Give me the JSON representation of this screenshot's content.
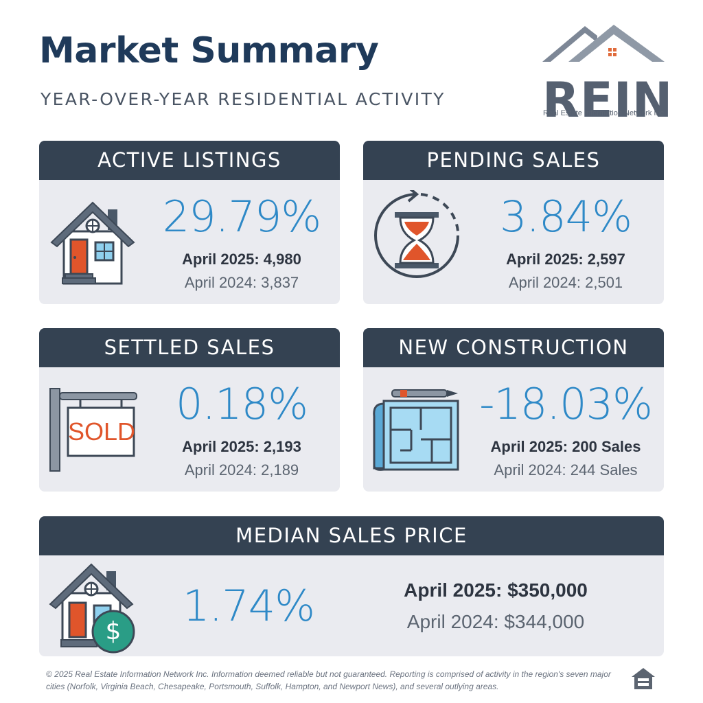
{
  "header": {
    "title": "Market Summary",
    "subtitle": "YEAR-OVER-YEAR RESIDENTIAL ACTIVITY"
  },
  "logo": {
    "wordmark": "REIN",
    "tagline": "Real Estate Information Network Inc."
  },
  "cards": {
    "active_listings": {
      "title": "ACTIVE LISTINGS",
      "percent": "29.79%",
      "current": "April 2025: 4,980",
      "previous": "April 2024: 3,837",
      "icon": "house-icon"
    },
    "pending_sales": {
      "title": "PENDING SALES",
      "percent": "3.84%",
      "current": "April 2025: 2,597",
      "previous": "April 2024: 2,501",
      "icon": "hourglass-icon"
    },
    "settled_sales": {
      "title": "SETTLED SALES",
      "percent": "0.18%",
      "current": "April 2025: 2,193",
      "previous": "April 2024: 2,189",
      "icon": "sold-sign-icon",
      "sign_text": "SOLD"
    },
    "new_construction": {
      "title": "NEW CONSTRUCTION",
      "percent": "-18.03%",
      "current": "April 2025: 200 Sales",
      "previous": "April 2024: 244 Sales",
      "icon": "blueprint-icon"
    },
    "median_sales_price": {
      "title": "MEDIAN SALES PRICE",
      "percent": "1.74%",
      "current": "April 2025: $350,000",
      "previous": "April 2024: $344,000",
      "icon": "house-dollar-icon",
      "badge_symbol": "$"
    }
  },
  "footer": {
    "disclaimer": "© 2025 Real Estate Information Network Inc. Information deemed reliable but not guaranteed. Reporting is comprised of activity in the region's seven major cities (Norfolk, Virginia Beach, Chesapeake, Portsmouth, Suffolk, Hampton, and Newport News), and several outlying areas.",
    "icon": "equal-housing-opportunity-icon"
  },
  "colors": {
    "navy_header": "#344252",
    "title_navy": "#1f3a5a",
    "accent_blue": "#2e89c7",
    "card_bg": "#eaebf0",
    "door_orange": "#e0552b",
    "dollar_teal": "#2a9d86"
  }
}
